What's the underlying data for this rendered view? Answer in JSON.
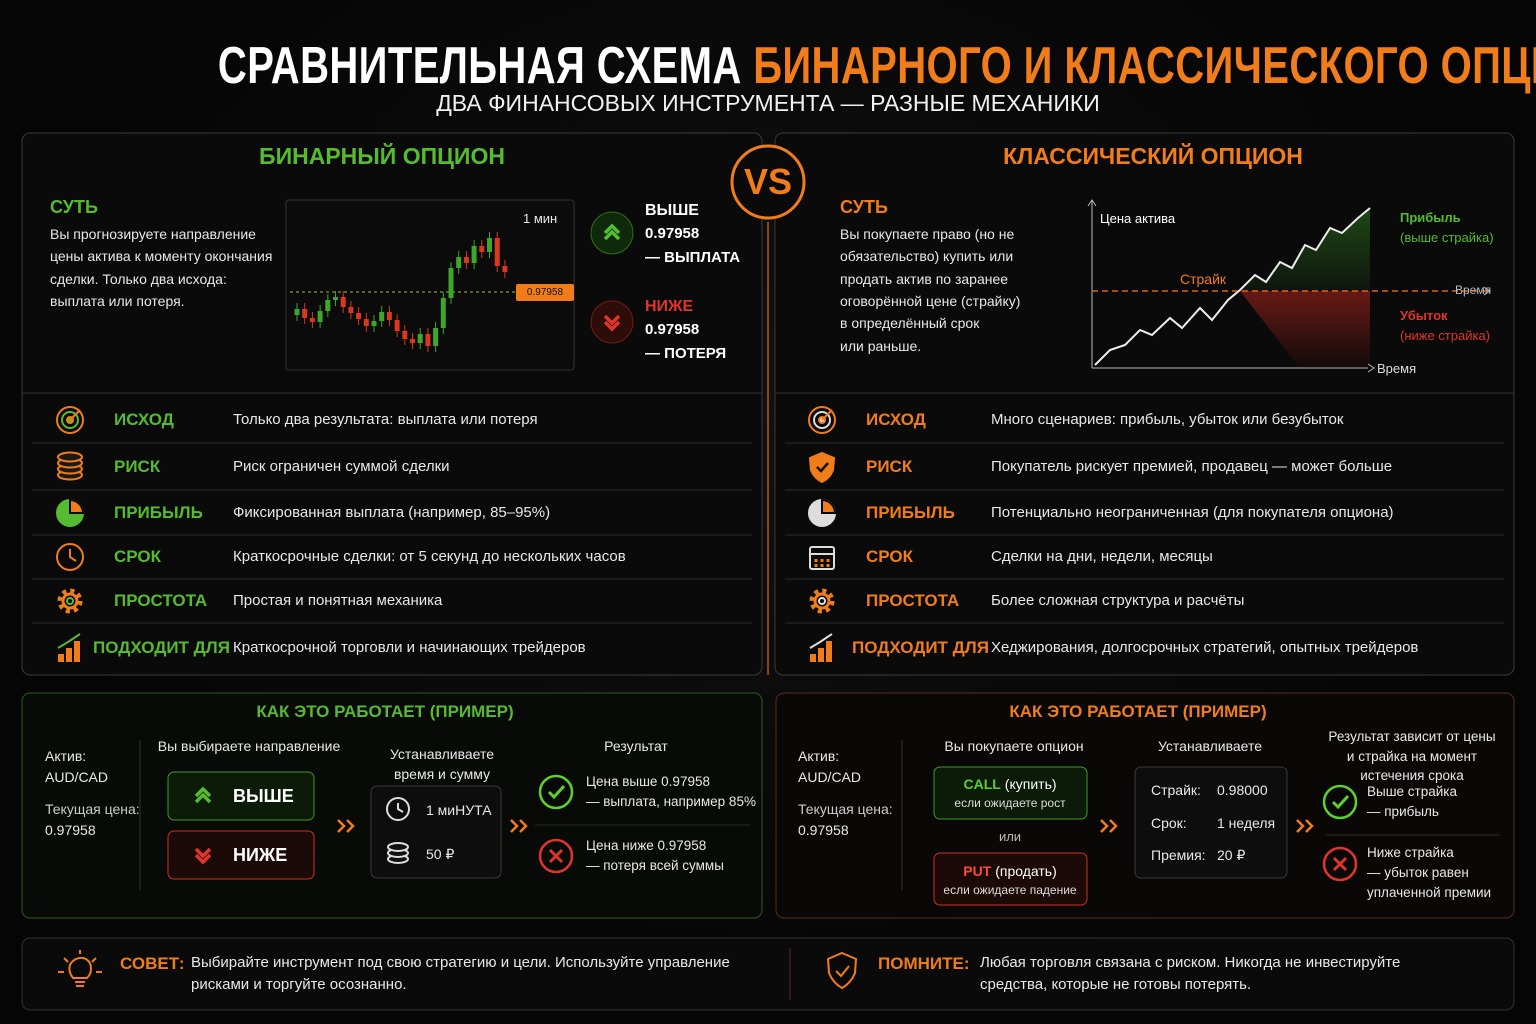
{
  "header": {
    "title_part1": "СРАВНИТЕЛЬНАЯ СХЕМА",
    "title_part2": "БИНАРНОГО И КЛАССИЧЕСКОГО ОПЦИОНА",
    "subtitle": "ДВА ФИНАНСОВЫХ ИНСТРУМЕНТА — РАЗНЫЕ МЕХАНИКИ"
  },
  "vs": "VS",
  "binary": {
    "title": "БИНАРНЫЙ ОПЦИОН",
    "essence": {
      "label": "СУТЬ",
      "text": "Вы прогнозируете направление\nцены актива к моменту окончания\nсделки. Только два исхода:\nвыплата или потеря."
    },
    "chart": {
      "timeframe": "1 мин",
      "price_tag": "0.97958"
    },
    "outcomes": [
      {
        "label": "ВЫШЕ",
        "price": "0.97958",
        "result": "— ВЫПЛАТА"
      },
      {
        "label": "НИЖЕ",
        "price": "0.97958",
        "result": "— ПОТЕРЯ"
      }
    ],
    "rows": [
      {
        "label": "ИСХОД",
        "text": "Только два результата: выплата или потеря"
      },
      {
        "label": "РИСК",
        "text": "Риск ограничен суммой сделки"
      },
      {
        "label": "ПРИБЫЛЬ",
        "text": "Фиксированная выплата (например, 85–95%)"
      },
      {
        "label": "СРОК",
        "text": "Краткосрочные сделки: от 5 секунд до нескольких часов"
      },
      {
        "label": "ПРОСТОТА",
        "text": "Простая и понятная механика"
      },
      {
        "label": "ПОДХОДИТ ДЛЯ",
        "text": "Краткосрочной торговли и начинающих трейдеров"
      }
    ],
    "example": {
      "title": "КАК ЭТО РАБОТАЕТ (ПРИМЕР)",
      "asset_label": "Актив:",
      "asset": "AUD/CAD",
      "price_label": "Текущая цена:",
      "price": "0.97958",
      "step1": {
        "title": "Вы выбираете направление",
        "up": "ВЫШЕ",
        "down": "НИЖЕ"
      },
      "step2": {
        "title": "Устанавливаете\nвремя и сумму",
        "time": "1 миНУТА",
        "amount": "50 ₽"
      },
      "step3": {
        "title": "Результат",
        "win": "Цена выше 0.97958\n— выплата, например 85%",
        "loss": "Цена ниже 0.97958\n— потеря всей суммы"
      }
    }
  },
  "classic": {
    "title": "КЛАССИЧЕСКИЙ ОПЦИОН",
    "essence": {
      "label": "СУТЬ",
      "text": "Вы покупаете право (но не\nобязательство) купить или\nпродать актив по заранее\nоговорённой цене (страйку)\nв определённый срок\nили раньше."
    },
    "chart": {
      "y_label": "Цена актива",
      "strike": "Страйк",
      "strike_time": "Время",
      "x_label": "Время",
      "profit": "Прибыль",
      "profit_note": "(выше страйка)",
      "loss": "Убыток",
      "loss_note": "(ниже страйка)"
    },
    "rows": [
      {
        "label": "ИСХОД",
        "text": "Много сценариев: прибыль, убыток или безубыток"
      },
      {
        "label": "РИСК",
        "text": "Покупатель рискует премией, продавец — может больше"
      },
      {
        "label": "ПРИБЫЛЬ",
        "text": "Потенциально неограниченная (для покупателя опциона)"
      },
      {
        "label": "СРОК",
        "text": "Сделки на дни, недели, месяцы"
      },
      {
        "label": "ПРОСТОТА",
        "text": "Более сложная структура и расчёты"
      },
      {
        "label": "ПОДХОДИТ ДЛЯ",
        "text": "Хеджирования, долгосрочных стратегий, опытных трейдеров"
      }
    ],
    "example": {
      "title": "КАК ЭТО РАБОТАЕТ (ПРИМЕР)",
      "asset_label": "Актив:",
      "asset": "AUD/CAD",
      "price_label": "Текущая цена:",
      "price": "0.97958",
      "step1": {
        "title": "Вы покупаете опцион",
        "call": "CALL",
        "call_action": "(купить)",
        "call_note": "если ожидаете рост",
        "or": "или",
        "put": "PUT",
        "put_action": "(продать)",
        "put_note": "если ожидаете падение"
      },
      "step2": {
        "title": "Устанавливаете",
        "params": [
          [
            "Страйк:",
            "0.98000"
          ],
          [
            "Срок:",
            "1 неделя"
          ],
          [
            "Премия:",
            "20 ₽"
          ]
        ]
      },
      "step3": {
        "title": "Результат зависит от цены\nи страйка на момент\nистечения срока",
        "win": "Выше страйка\n— прибыль",
        "loss": "Ниже страйка\n— убыток равен\nуплаченной премии"
      }
    }
  },
  "tips": [
    {
      "label": "СОВЕТ:",
      "text": "Выбирайте инструмент под свою стратегию и цели. Используйте управление\nрисками и торгуйте осознанно."
    },
    {
      "label": "ПОМНИТЕ:",
      "text": "Любая торговля связана с риском. Никогда не инвестируйте\nсредства, которые не готовы потерять."
    }
  ]
}
